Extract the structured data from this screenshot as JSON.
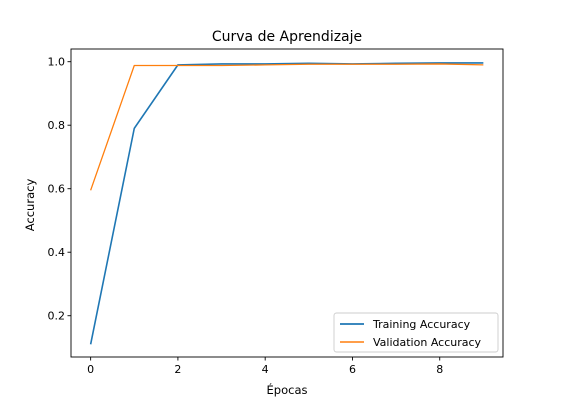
{
  "chart_data": {
    "type": "line",
    "title": "Curva de Aprendizaje",
    "xlabel": "Épocas",
    "ylabel": "Accuracy",
    "xlim": [
      -0.45,
      9.45
    ],
    "ylim": [
      0.07,
      1.04
    ],
    "xticks": [
      0,
      2,
      4,
      6,
      8
    ],
    "yticks": [
      0.2,
      0.4,
      0.6,
      0.8,
      1.0
    ],
    "grid": false,
    "legend_position": "lower-right",
    "x": [
      0,
      1,
      2,
      3,
      4,
      5,
      6,
      7,
      8,
      9
    ],
    "series": [
      {
        "name": "Training Accuracy",
        "color": "#1f77b4",
        "values": [
          0.11,
          0.79,
          0.99,
          0.993,
          0.993,
          0.995,
          0.993,
          0.995,
          0.996,
          0.996
        ]
      },
      {
        "name": "Validation Accuracy",
        "color": "#ff7f0e",
        "values": [
          0.595,
          0.988,
          0.988,
          0.988,
          0.99,
          0.992,
          0.992,
          0.992,
          0.993,
          0.99
        ]
      }
    ]
  }
}
